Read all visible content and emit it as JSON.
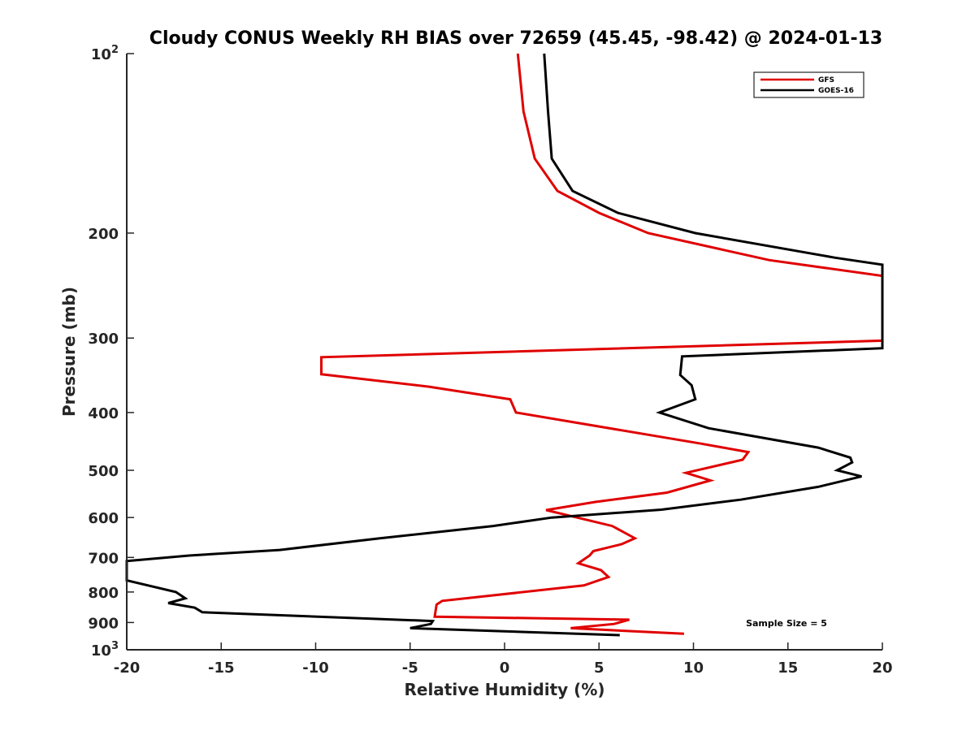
{
  "chart_data": {
    "type": "line",
    "title": "Cloudy CONUS Weekly RH BIAS over 72659 (45.45, -98.42) @ 2024-01-13",
    "xlabel": "Relative Humidity (%)",
    "ylabel": "Pressure (mb)",
    "xlim": [
      -20,
      20
    ],
    "ylim": [
      100,
      1000
    ],
    "yscale": "log",
    "y_reversed": true,
    "xticks": [
      -20,
      -15,
      -10,
      -5,
      0,
      5,
      10,
      15,
      20
    ],
    "xtick_labels": [
      "-20",
      "-15",
      "-10",
      "-5",
      "0",
      "5",
      "10",
      "15",
      "20"
    ],
    "yticks": [
      100,
      200,
      300,
      400,
      500,
      600,
      700,
      800,
      900,
      1000
    ],
    "ytick_labels": [
      "10^2",
      "200",
      "300",
      "400",
      "500",
      "600",
      "700",
      "800",
      "900",
      "10^3"
    ],
    "grid": false,
    "legend_position": "top-right",
    "annotation": "Sample Size = 5",
    "series": [
      {
        "name": "GFS",
        "color": "#e00000",
        "points": [
          [
            0.7,
            100
          ],
          [
            1.0,
            125
          ],
          [
            1.6,
            150
          ],
          [
            2.8,
            170
          ],
          [
            5.0,
            185
          ],
          [
            7.6,
            200
          ],
          [
            14.0,
            222
          ],
          [
            20.0,
            236
          ],
          [
            20.0,
            303
          ],
          [
            -9.7,
            323
          ],
          [
            -9.7,
            345
          ],
          [
            -4.0,
            362
          ],
          [
            0.3,
            380
          ],
          [
            0.6,
            400
          ],
          [
            10.4,
            451
          ],
          [
            12.9,
            466
          ],
          [
            12.6,
            480
          ],
          [
            9.6,
            505
          ],
          [
            10.9,
            520
          ],
          [
            8.6,
            545
          ],
          [
            4.8,
            565
          ],
          [
            2.2,
            583
          ],
          [
            5.7,
            620
          ],
          [
            6.9,
            650
          ],
          [
            6.2,
            665
          ],
          [
            4.7,
            683
          ],
          [
            4.5,
            695
          ],
          [
            3.9,
            716
          ],
          [
            5.1,
            735
          ],
          [
            5.5,
            755
          ],
          [
            4.2,
            780
          ],
          [
            -3.3,
            828
          ],
          [
            -3.6,
            840
          ],
          [
            -3.7,
            880
          ],
          [
            6.6,
            890
          ],
          [
            5.8,
            905
          ],
          [
            3.5,
            920
          ],
          [
            9.5,
            940
          ]
        ]
      },
      {
        "name": "GOES-16",
        "color": "#000000",
        "points": [
          [
            2.1,
            100
          ],
          [
            2.3,
            125
          ],
          [
            2.5,
            150
          ],
          [
            3.6,
            170
          ],
          [
            6.0,
            185
          ],
          [
            10.1,
            200
          ],
          [
            17.5,
            220
          ],
          [
            20.0,
            226
          ],
          [
            20.0,
            312
          ],
          [
            9.4,
            322
          ],
          [
            9.3,
            346
          ],
          [
            9.9,
            360
          ],
          [
            10.1,
            380
          ],
          [
            8.2,
            400
          ],
          [
            10.8,
            425
          ],
          [
            16.6,
            458
          ],
          [
            18.3,
            476
          ],
          [
            18.4,
            485
          ],
          [
            17.6,
            500
          ],
          [
            18.9,
            512
          ],
          [
            16.6,
            533
          ],
          [
            12.5,
            560
          ],
          [
            8.3,
            582
          ],
          [
            2.5,
            600
          ],
          [
            -0.6,
            620
          ],
          [
            -6.6,
            650
          ],
          [
            -11.9,
            680
          ],
          [
            -16.7,
            695
          ],
          [
            -20.0,
            710
          ],
          [
            -20.0,
            765
          ],
          [
            -17.4,
            800
          ],
          [
            -16.9,
            820
          ],
          [
            -17.8,
            835
          ],
          [
            -16.4,
            850
          ],
          [
            -16.0,
            865
          ],
          [
            -3.8,
            895
          ],
          [
            -3.9,
            905
          ],
          [
            -5.0,
            920
          ],
          [
            6.1,
            945
          ]
        ]
      }
    ]
  }
}
